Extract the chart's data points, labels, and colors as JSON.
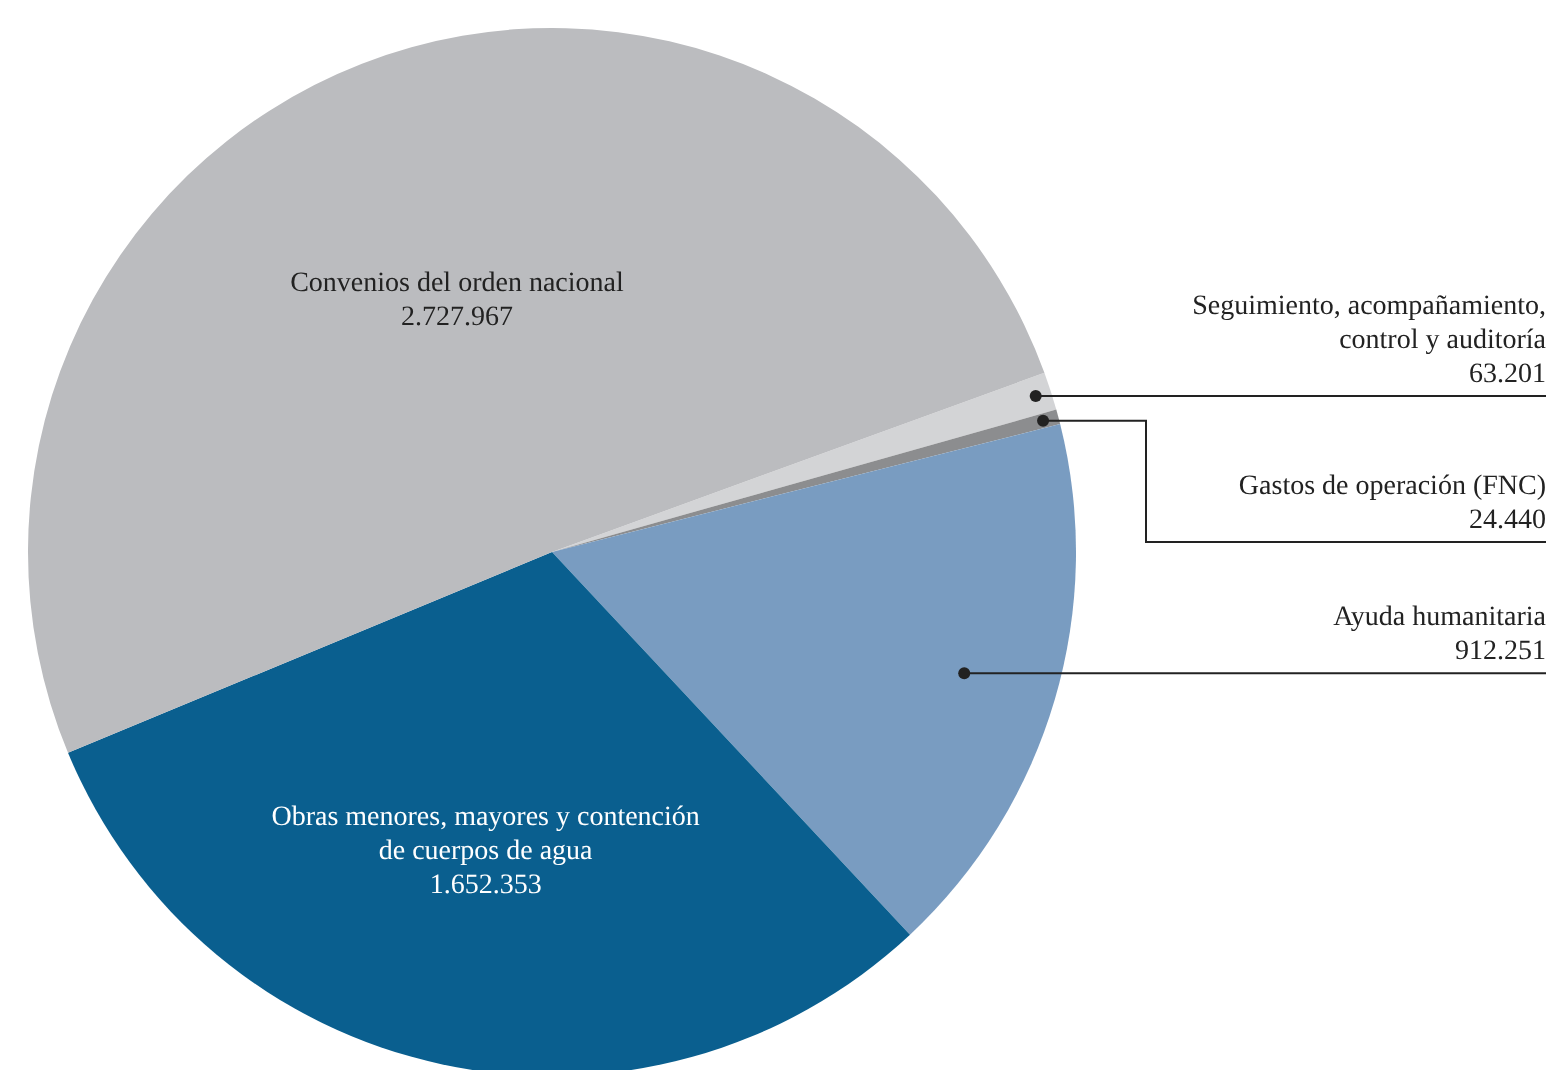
{
  "chart_data": {
    "type": "pie",
    "categories": [
      "Seguimiento, acompañamiento, control y auditoría",
      "Gastos de operación (FNC)",
      "Ayuda humanitaria",
      "Obras menores, mayores y contención de cuerpos de agua",
      "Convenios del orden nacional"
    ],
    "values": [
      63201,
      24440,
      912251,
      1652353,
      2727967
    ],
    "value_labels": [
      "63.201",
      "24.440",
      "912.251",
      "1.652.353",
      "2.727.967"
    ],
    "colors": [
      "#d3d4d6",
      "#8c8d8f",
      "#799cc1",
      "#0a5f8f",
      "#bbbcbf"
    ],
    "legend": false
  }
}
